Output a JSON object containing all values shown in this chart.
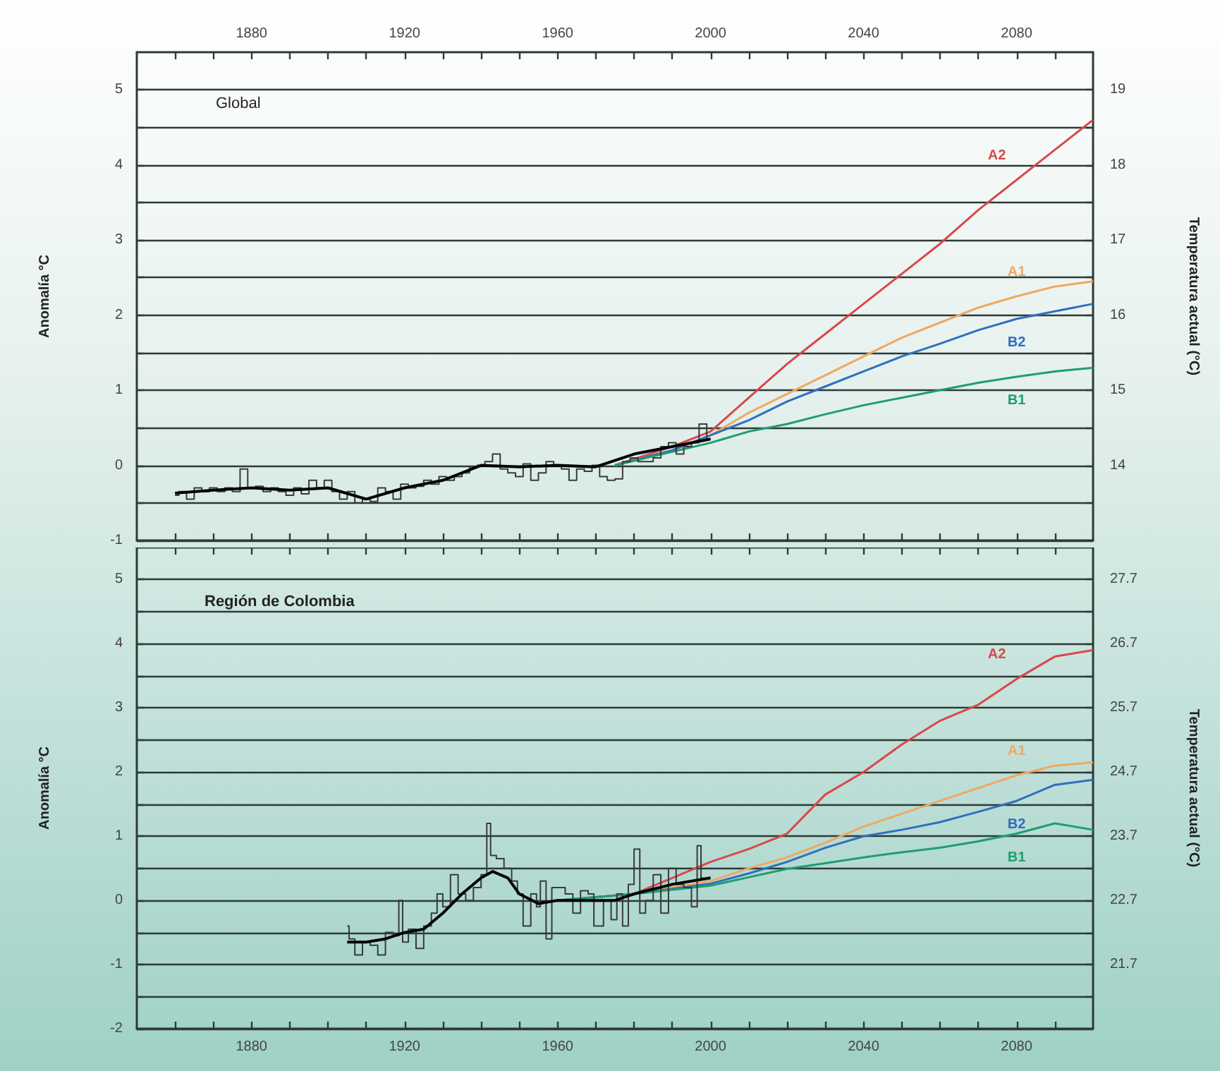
{
  "chart_data": [
    {
      "type": "line",
      "title": "Global",
      "ylabel": "Anomalía °C",
      "y2label": "Temperatura actual (°C)",
      "xlim": [
        1850,
        2100
      ],
      "xticks": [
        {
          "value": 1860,
          "label": null
        },
        {
          "value": 1870,
          "label": null
        },
        1880,
        {
          "value": 1890,
          "label": null
        },
        {
          "value": 1900,
          "label": null
        },
        {
          "value": 1910,
          "label": null
        },
        1920,
        {
          "value": 1930,
          "label": null
        },
        {
          "value": 1940,
          "label": null
        },
        {
          "value": 1950,
          "label": null
        },
        1960,
        {
          "value": 1970,
          "label": null
        },
        {
          "value": 1980,
          "label": null
        },
        {
          "value": 1990,
          "label": null
        },
        2000,
        {
          "value": 2010,
          "label": null
        },
        {
          "value": 2020,
          "label": null
        },
        {
          "value": 2030,
          "label": null
        },
        2040,
        {
          "value": 2050,
          "label": null
        },
        {
          "value": 2060,
          "label": null
        },
        {
          "value": 2070,
          "label": null
        },
        2080,
        {
          "value": 2090,
          "label": null
        }
      ],
      "ylim": [
        -1,
        5.5
      ],
      "yticks": [
        -1,
        {
          "value": -0.5,
          "label": null
        },
        0,
        {
          "value": 0.5,
          "label": null
        },
        1,
        {
          "value": 1.5,
          "label": null
        },
        2,
        {
          "value": 2.5,
          "label": null
        },
        3,
        {
          "value": 3.5,
          "label": null
        },
        4,
        {
          "value": 4.5,
          "label": null
        },
        5
      ],
      "y2lim": [
        13,
        19.5
      ],
      "y2ticks": [
        {
          "value": 13.5,
          "label": null
        },
        14,
        {
          "value": 14.5,
          "label": null
        },
        15,
        {
          "value": 15.5,
          "label": null
        },
        16,
        {
          "value": 16.5,
          "label": null
        },
        17,
        {
          "value": 17.5,
          "label": null
        },
        18,
        {
          "value": 18.5,
          "label": null
        },
        19
      ],
      "grid": "y",
      "legend": false,
      "series": [
        {
          "type": "step",
          "color": "#3a3a3a",
          "x": [
            1860,
            1862,
            1864,
            1866,
            1868,
            1870,
            1872,
            1874,
            1876,
            1878,
            1880,
            1882,
            1884,
            1886,
            1888,
            1890,
            1892,
            1894,
            1896,
            1898,
            1900,
            1902,
            1904,
            1906,
            1908,
            1910,
            1912,
            1914,
            1916,
            1918,
            1920,
            1922,
            1924,
            1926,
            1928,
            1930,
            1932,
            1934,
            1936,
            1938,
            1940,
            1942,
            1944,
            1946,
            1948,
            1950,
            1952,
            1954,
            1956,
            1958,
            1960,
            1962,
            1964,
            1966,
            1968,
            1970,
            1972,
            1974,
            1976,
            1978,
            1980,
            1982,
            1984,
            1986,
            1988,
            1990,
            1992,
            1994,
            1996,
            1998,
            2000
          ],
          "values": [
            -0.4,
            -0.35,
            -0.45,
            -0.3,
            -0.35,
            -0.3,
            -0.35,
            -0.3,
            -0.35,
            -0.05,
            -0.3,
            -0.28,
            -0.35,
            -0.3,
            -0.35,
            -0.4,
            -0.3,
            -0.38,
            -0.2,
            -0.3,
            -0.2,
            -0.35,
            -0.45,
            -0.35,
            -0.5,
            -0.45,
            -0.48,
            -0.3,
            -0.35,
            -0.45,
            -0.25,
            -0.3,
            -0.28,
            -0.2,
            -0.25,
            -0.15,
            -0.2,
            -0.15,
            -0.1,
            -0.02,
            0.0,
            0.05,
            0.15,
            -0.05,
            -0.1,
            -0.15,
            0.02,
            -0.2,
            -0.1,
            0.05,
            0.0,
            -0.05,
            -0.2,
            -0.05,
            -0.08,
            0.0,
            -0.15,
            -0.2,
            -0.18,
            0.05,
            0.1,
            0.05,
            0.05,
            0.1,
            0.25,
            0.3,
            0.15,
            0.25,
            0.3,
            0.55,
            0.35
          ]
        },
        {
          "type": "line",
          "color": "#000000",
          "x": [
            1860,
            1870,
            1880,
            1890,
            1900,
            1910,
            1920,
            1930,
            1940,
            1950,
            1960,
            1970,
            1980,
            1990,
            2000
          ],
          "values": [
            -0.37,
            -0.33,
            -0.3,
            -0.33,
            -0.3,
            -0.45,
            -0.3,
            -0.2,
            0.0,
            -0.02,
            0.0,
            -0.02,
            0.15,
            0.25,
            0.35
          ]
        },
        {
          "name": "A2",
          "color": "#d9474a",
          "x": [
            1975,
            1990,
            2000,
            2010,
            2020,
            2030,
            2040,
            2050,
            2060,
            2070,
            2080,
            2090,
            2100
          ],
          "values": [
            0,
            0.25,
            0.45,
            0.9,
            1.35,
            1.75,
            2.15,
            2.55,
            2.95,
            3.4,
            3.8,
            4.2,
            4.6
          ]
        },
        {
          "name": "A1",
          "color": "#f0a860",
          "x": [
            1975,
            1990,
            2000,
            2010,
            2020,
            2030,
            2040,
            2050,
            2060,
            2070,
            2080,
            2090,
            2100
          ],
          "values": [
            0,
            0.2,
            0.4,
            0.7,
            0.95,
            1.2,
            1.45,
            1.7,
            1.9,
            2.1,
            2.25,
            2.38,
            2.45
          ]
        },
        {
          "name": "B2",
          "color": "#2f6fc0",
          "x": [
            1975,
            1990,
            2000,
            2010,
            2020,
            2030,
            2040,
            2050,
            2060,
            2070,
            2080,
            2090,
            2100
          ],
          "values": [
            0,
            0.2,
            0.4,
            0.6,
            0.85,
            1.05,
            1.25,
            1.45,
            1.62,
            1.8,
            1.95,
            2.05,
            2.15
          ]
        },
        {
          "name": "B1",
          "color": "#1e9e6e",
          "x": [
            1975,
            1990,
            2000,
            2010,
            2020,
            2030,
            2040,
            2050,
            2060,
            2070,
            2080,
            2090,
            2100
          ],
          "values": [
            0,
            0.18,
            0.3,
            0.45,
            0.55,
            0.68,
            0.8,
            0.9,
            1.0,
            1.1,
            1.18,
            1.25,
            1.3
          ]
        }
      ]
    },
    {
      "type": "line",
      "title": "Región de Colombia",
      "ylabel": "Anomalía °C",
      "y2label": "Temperatura actual (°C)",
      "xlim": [
        1850,
        2100
      ],
      "xticks": [
        {
          "value": 1860,
          "label": null
        },
        {
          "value": 1870,
          "label": null
        },
        1880,
        {
          "value": 1890,
          "label": null
        },
        {
          "value": 1900,
          "label": null
        },
        {
          "value": 1910,
          "label": null
        },
        1920,
        {
          "value": 1930,
          "label": null
        },
        {
          "value": 1940,
          "label": null
        },
        {
          "value": 1950,
          "label": null
        },
        1960,
        {
          "value": 1970,
          "label": null
        },
        {
          "value": 1980,
          "label": null
        },
        {
          "value": 1990,
          "label": null
        },
        2000,
        {
          "value": 2010,
          "label": null
        },
        {
          "value": 2020,
          "label": null
        },
        {
          "value": 2030,
          "label": null
        },
        2040,
        {
          "value": 2050,
          "label": null
        },
        {
          "value": 2060,
          "label": null
        },
        {
          "value": 2070,
          "label": null
        },
        2080,
        {
          "value": 2090,
          "label": null
        }
      ],
      "ylim": [
        -2,
        5.5
      ],
      "yticks": [
        -2,
        {
          "value": -1.5,
          "label": null
        },
        -1,
        {
          "value": -0.5,
          "label": null
        },
        0,
        {
          "value": 0.5,
          "label": null
        },
        1,
        {
          "value": 1.5,
          "label": null
        },
        2,
        {
          "value": 2.5,
          "label": null
        },
        3,
        {
          "value": 3.5,
          "label": null
        },
        4,
        {
          "value": 4.5,
          "label": null
        },
        5
      ],
      "y2lim": [
        20.7,
        28.2
      ],
      "y2ticks": [
        {
          "value": 21.2,
          "label": null
        },
        21.7,
        {
          "value": 22.2,
          "label": null
        },
        22.7,
        {
          "value": 23.2,
          "label": null
        },
        23.7,
        {
          "value": 24.2,
          "label": null
        },
        24.7,
        {
          "value": 25.2,
          "label": null
        },
        25.7,
        {
          "value": 26.2,
          "label": null
        },
        26.7,
        {
          "value": 27.2,
          "label": null
        },
        27.7
      ],
      "grid": "y",
      "legend": false,
      "series": [
        {
          "type": "step",
          "color": "#3a3a3a",
          "x": [
            1905,
            1906,
            1908,
            1910,
            1912,
            1914,
            1916,
            1918,
            1919,
            1920,
            1922,
            1924,
            1926,
            1928,
            1929,
            1931,
            1933,
            1935,
            1937,
            1939,
            1941,
            1942,
            1943,
            1945,
            1947,
            1949,
            1950,
            1952,
            1954,
            1955,
            1956,
            1958,
            1959,
            1961,
            1963,
            1965,
            1967,
            1969,
            1970,
            1971,
            1973,
            1975,
            1976,
            1978,
            1979,
            1981,
            1982,
            1984,
            1986,
            1988,
            1990,
            1992,
            1994,
            1996,
            1997,
            1998
          ],
          "values": [
            -0.4,
            -0.6,
            -0.85,
            -0.65,
            -0.7,
            -0.85,
            -0.5,
            -0.55,
            0.0,
            -0.65,
            -0.45,
            -0.75,
            -0.4,
            -0.2,
            0.1,
            -0.1,
            0.4,
            0.1,
            0.0,
            0.2,
            0.4,
            1.2,
            0.7,
            0.65,
            0.5,
            0.3,
            0.1,
            -0.4,
            0.1,
            -0.1,
            0.3,
            -0.6,
            0.2,
            0.2,
            0.1,
            -0.2,
            0.15,
            0.1,
            -0.4,
            -0.4,
            0.0,
            -0.3,
            0.1,
            -0.4,
            0.25,
            0.8,
            -0.2,
            0.0,
            0.4,
            -0.2,
            0.5,
            0.25,
            0.2,
            -0.1,
            0.85,
            0.35
          ]
        },
        {
          "type": "line",
          "color": "#000000",
          "x": [
            1905,
            1910,
            1915,
            1920,
            1925,
            1930,
            1935,
            1940,
            1943,
            1947,
            1950,
            1955,
            1960,
            1970,
            1975,
            1980,
            1990,
            2000
          ],
          "values": [
            -0.65,
            -0.65,
            -0.6,
            -0.5,
            -0.45,
            -0.2,
            0.1,
            0.35,
            0.45,
            0.35,
            0.1,
            -0.05,
            0.0,
            0.0,
            0.0,
            0.1,
            0.25,
            0.35
          ]
        },
        {
          "name": "A2",
          "color": "#d9474a",
          "x": [
            1960,
            1980,
            2000,
            2010,
            2020,
            2030,
            2040,
            2050,
            2060,
            2070,
            2080,
            2090,
            2100
          ],
          "values": [
            0,
            0.1,
            0.6,
            0.8,
            1.04,
            1.65,
            2.0,
            2.43,
            2.8,
            3.05,
            3.45,
            3.8,
            3.9
          ]
        },
        {
          "name": "A1",
          "color": "#f0a860",
          "x": [
            1960,
            1980,
            2000,
            2010,
            2020,
            2030,
            2040,
            2050,
            2060,
            2070,
            2080,
            2090,
            2100
          ],
          "values": [
            0,
            0.1,
            0.3,
            0.5,
            0.67,
            0.9,
            1.15,
            1.35,
            1.55,
            1.75,
            1.95,
            2.1,
            2.15
          ]
        },
        {
          "name": "B2",
          "color": "#2f6fc0",
          "x": [
            1960,
            1980,
            2000,
            2010,
            2020,
            2030,
            2040,
            2050,
            2060,
            2070,
            2080,
            2090,
            2100
          ],
          "values": [
            0,
            0.1,
            0.26,
            0.42,
            0.6,
            0.82,
            1.0,
            1.1,
            1.22,
            1.38,
            1.55,
            1.8,
            1.88
          ]
        },
        {
          "name": "B1",
          "color": "#1e9e6e",
          "x": [
            1960,
            1980,
            2000,
            2010,
            2020,
            2030,
            2040,
            2050,
            2060,
            2070,
            2080,
            2090,
            2100
          ],
          "values": [
            0,
            0.1,
            0.23,
            0.36,
            0.49,
            0.58,
            0.67,
            0.75,
            0.82,
            0.92,
            1.04,
            1.2,
            1.1
          ]
        }
      ]
    }
  ]
}
